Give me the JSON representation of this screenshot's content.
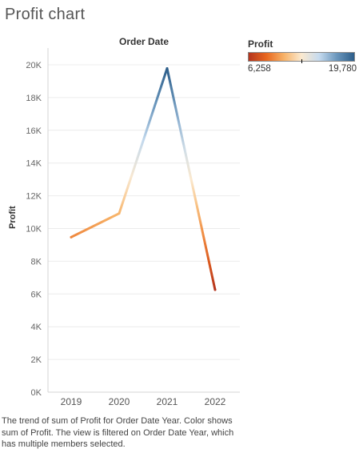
{
  "title": "Profit chart",
  "chart_data": {
    "type": "line",
    "column_header": "Order Date",
    "ylabel": "Profit",
    "x": [
      "2019",
      "2020",
      "2021",
      "2022"
    ],
    "y": [
      9470,
      10920,
      19780,
      6258
    ],
    "ylim": [
      0,
      20000
    ],
    "yticks": [
      0,
      2000,
      4000,
      6000,
      8000,
      10000,
      12000,
      14000,
      16000,
      18000,
      20000
    ],
    "ytick_labels": [
      "0K",
      "2K",
      "4K",
      "6K",
      "8K",
      "10K",
      "12K",
      "14K",
      "16K",
      "18K",
      "20K"
    ],
    "grid": true,
    "legend": {
      "title": "Profit",
      "min_label": "6,258",
      "max_label": "19,780",
      "min": 6258,
      "max": 19780,
      "mid": 13019,
      "placement": "top-right",
      "colors": [
        "#b4341e",
        "#e8671f",
        "#f7b267",
        "#fbe9cf",
        "#c6dbef",
        "#6b97bd",
        "#2d5e8a"
      ]
    }
  },
  "caption": "The trend of sum of Profit for Order Date Year.  Color shows sum of Profit. The view is filtered on Order Date Year, which has multiple members selected."
}
